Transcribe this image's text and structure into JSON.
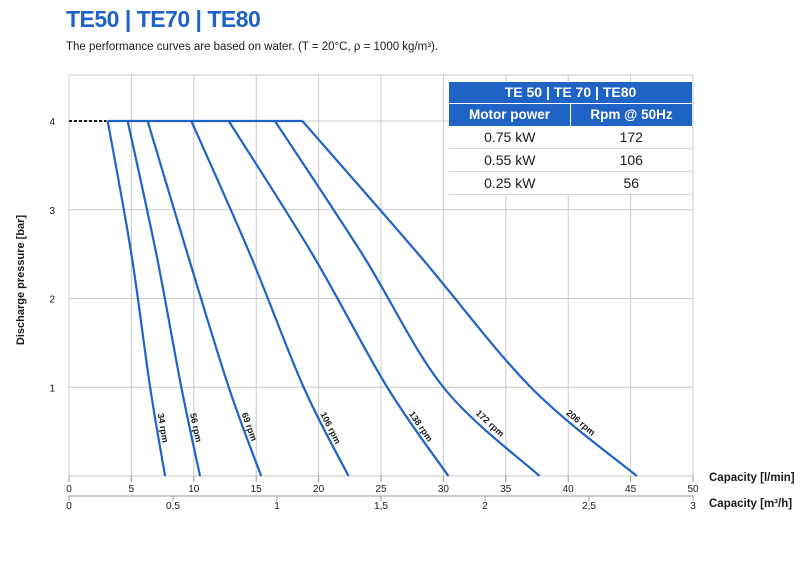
{
  "header": {
    "title": "TE50 | TE70 | TE80",
    "subtitle": "The performance curves are based on water. (T = 20°C, ρ = 1000 kg/m³)."
  },
  "table": {
    "title": "TE 50 | TE 70 | TE80",
    "columns": [
      "Motor power",
      "Rpm @ 50Hz"
    ],
    "rows": [
      [
        "0.75 kW",
        "172"
      ],
      [
        "0.55 kW",
        "106"
      ],
      [
        "0.25 kW",
        "56"
      ]
    ]
  },
  "colors": {
    "accent": "#1f63c6",
    "curve": "#1f63c6",
    "grid": "#c8c8c8"
  },
  "chart_data": {
    "type": "line",
    "ylabel": "Discharge pressure [bar]",
    "xlabel": "Capacity [l/min]",
    "xlabel2": "Capacity [m³/h]",
    "xlim": [
      0,
      50
    ],
    "ylim": [
      0,
      4.5
    ],
    "xticks": [
      "0",
      "5",
      "10",
      "15",
      "20",
      "25",
      "30",
      "35",
      "40",
      "45",
      "50"
    ],
    "xticks2": [
      "0",
      "0,5",
      "1",
      "1,5",
      "2",
      "2,5",
      "3"
    ],
    "yticks": [
      "1",
      "2",
      "3",
      "4"
    ],
    "grid": true,
    "max_pressure_line": {
      "y": 4,
      "x": [
        0,
        3
      ]
    },
    "series": [
      {
        "name": "34 rpm",
        "points": [
          [
            3.1,
            4.0
          ],
          [
            5.0,
            2.5
          ],
          [
            6.5,
            1.0
          ],
          [
            7.7,
            0.0
          ]
        ]
      },
      {
        "name": "56 rpm",
        "points": [
          [
            4.7,
            4.0
          ],
          [
            7.0,
            2.5
          ],
          [
            9.0,
            1.0
          ],
          [
            10.5,
            0.0
          ]
        ]
      },
      {
        "name": "69 rpm",
        "points": [
          [
            6.3,
            4.0
          ],
          [
            9.5,
            2.5
          ],
          [
            12.8,
            1.0
          ],
          [
            15.4,
            0.0
          ]
        ]
      },
      {
        "name": "106 rpm",
        "points": [
          [
            9.8,
            4.0
          ],
          [
            14.5,
            2.5
          ],
          [
            18.8,
            1.0
          ],
          [
            22.4,
            0.0
          ]
        ]
      },
      {
        "name": "138 rpm",
        "points": [
          [
            12.8,
            4.0
          ],
          [
            19.5,
            2.5
          ],
          [
            25.5,
            1.0
          ],
          [
            30.4,
            0.0
          ]
        ]
      },
      {
        "name": "172 rpm",
        "points": [
          [
            16.5,
            4.0
          ],
          [
            23.5,
            2.5
          ],
          [
            30.0,
            1.0
          ],
          [
            37.7,
            0.0
          ]
        ]
      },
      {
        "name": "206 rpm",
        "points": [
          [
            18.7,
            4.0
          ],
          [
            28.0,
            2.5
          ],
          [
            37.0,
            1.0
          ],
          [
            45.5,
            0.0
          ]
        ]
      }
    ]
  }
}
